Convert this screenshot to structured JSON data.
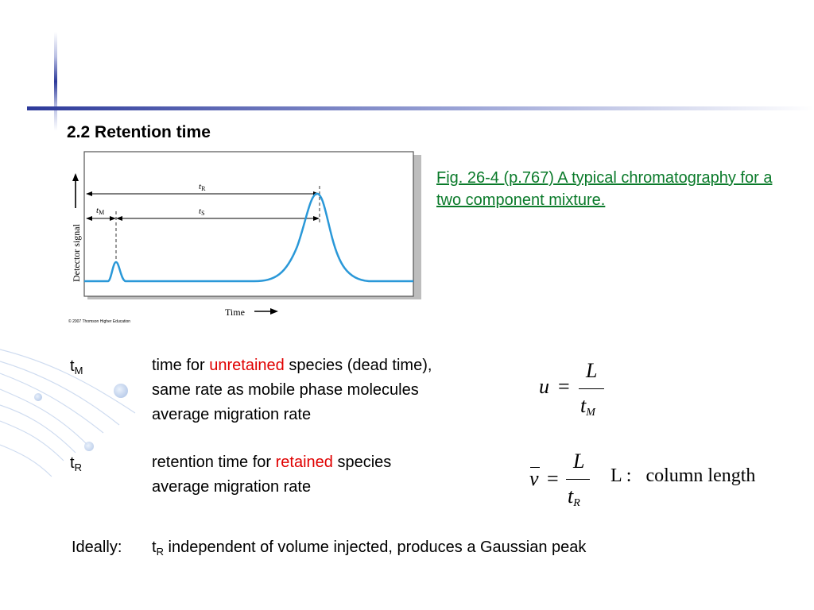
{
  "title": "2.2 Retention time",
  "caption": "Fig. 26-4 (p.767)  A typical chromatography for a two component mixture.",
  "figure": {
    "y_axis_label": "Detector signal",
    "x_axis_label": "Time",
    "t_R_label": "t",
    "t_R_sub": "R",
    "t_M_label": "t",
    "t_M_sub": "M",
    "t_S_label": "t",
    "t_S_sub": "S",
    "copyright": "© 2007 Thomson Higher Education"
  },
  "definitions": [
    {
      "term": "t",
      "term_sub": "M",
      "line1_pre": "time for ",
      "line1_highlight": "unretained",
      "line1_post": " species (dead time),",
      "line2": "same rate as mobile phase molecules",
      "line3": "average migration rate"
    },
    {
      "term": "t",
      "term_sub": "R",
      "line1_pre": "retention time for ",
      "line1_highlight": "retained",
      "line1_post": " species",
      "line2": "average migration rate"
    }
  ],
  "ideally": {
    "label": "Ideally:",
    "term": "t",
    "term_sub": "R",
    "text": " independent of volume injected, produces a Gaussian peak"
  },
  "equations": {
    "eq1_lhs": "u",
    "eq1_eq": "=",
    "eq1_num": "L",
    "eq1_den": "t",
    "eq1_den_sub": "M",
    "eq2_lhs": "v",
    "eq2_eq": "=",
    "eq2_num": "L",
    "eq2_den": "t",
    "eq2_den_sub": "R",
    "eq2_note": "L :   column length"
  },
  "colors": {
    "accent_blue": "#2d3a9a",
    "caption_green": "#0a7a2a",
    "highlight_red": "#e00000",
    "curve_blue": "#2a98d8"
  }
}
